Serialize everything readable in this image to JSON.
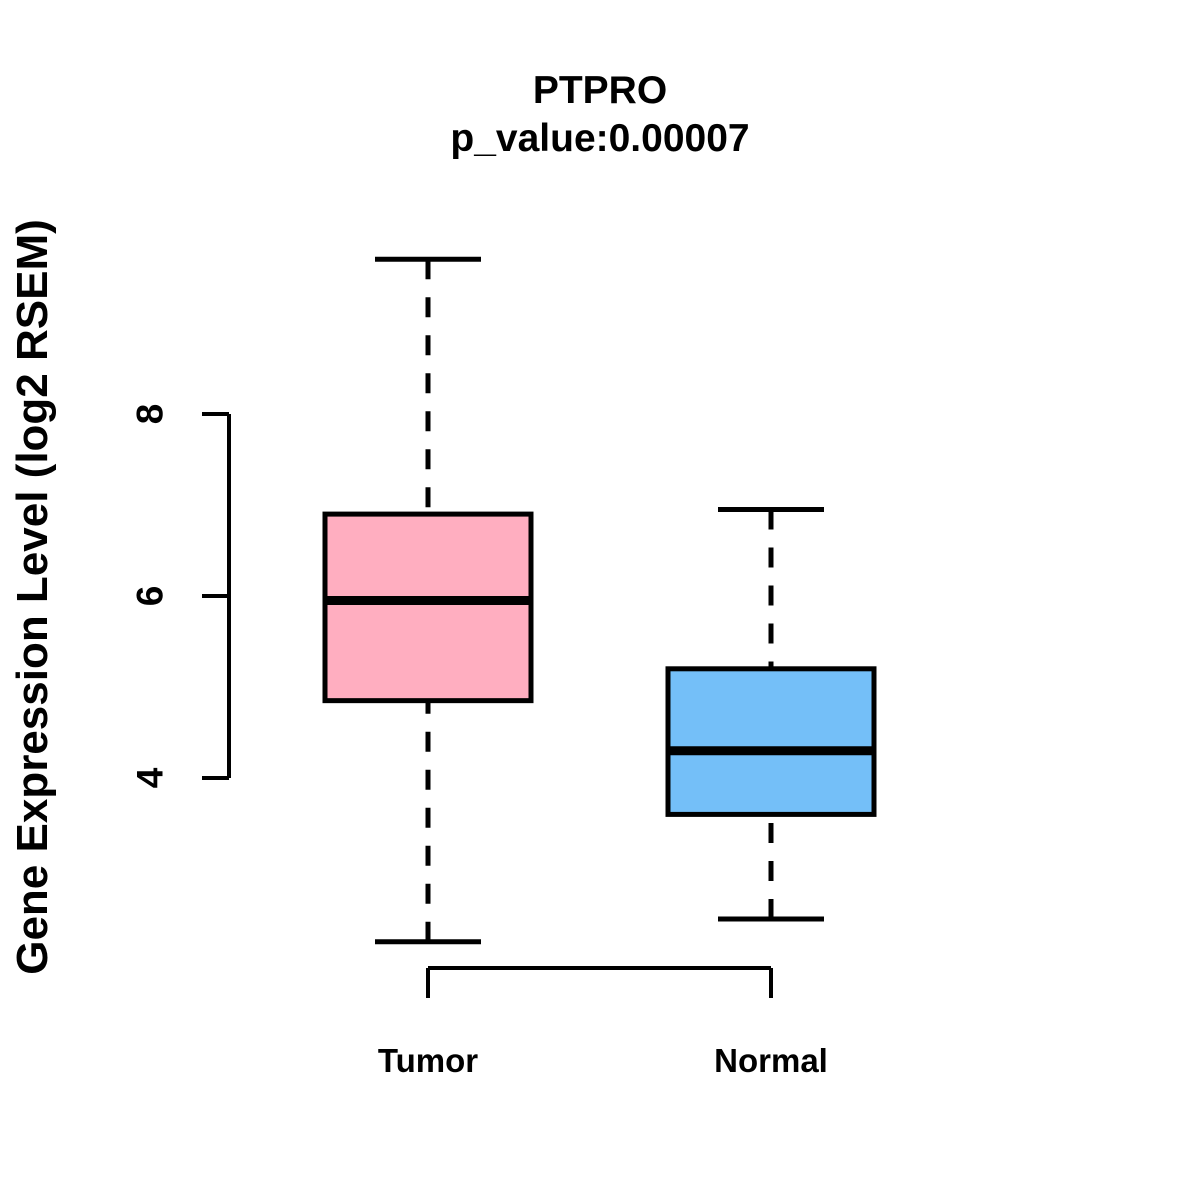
{
  "header": {
    "title": "PTPRO",
    "subtitle": "p_value:0.00007"
  },
  "chart_data": {
    "type": "boxplot",
    "title": "PTPRO",
    "subtitle": "p_value:0.00007",
    "xlabel": "",
    "ylabel": "Gene Expression Level (log2 RSEM)",
    "categories": [
      "Tumor",
      "Normal"
    ],
    "series": [
      {
        "name": "Tumor",
        "fill_color": "#FFAEC0",
        "whisker_low": 2.2,
        "q1": 4.85,
        "median": 5.95,
        "q3": 6.9,
        "whisker_high": 9.7,
        "outliers": []
      },
      {
        "name": "Normal",
        "fill_color": "#74BFF8",
        "whisker_low": 2.45,
        "q1": 3.6,
        "median": 4.3,
        "q3": 5.2,
        "whisker_high": 6.95,
        "outliers": []
      }
    ],
    "yticks": [
      4,
      6,
      8
    ],
    "ylim": [
      2.0,
      9.9
    ],
    "y_axis_drawn_range": [
      4,
      8
    ],
    "grid": false,
    "legend": false,
    "line_color": "#000000",
    "background_color": "#FFFFFF",
    "whisker_style": "dashed"
  }
}
